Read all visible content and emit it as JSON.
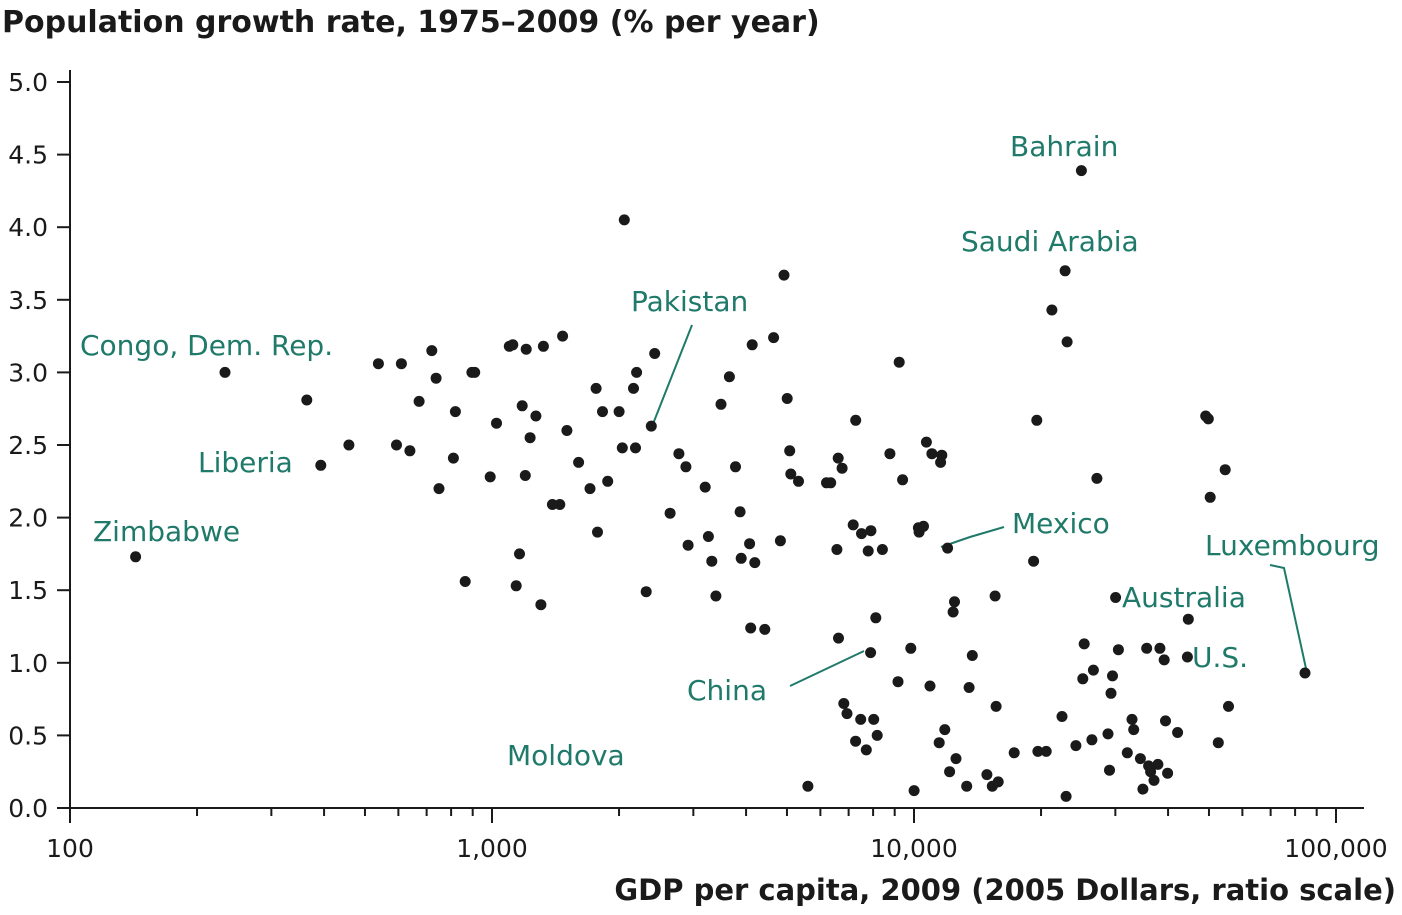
{
  "chart_data": {
    "type": "scatter",
    "title": "Population growth rate, 1975–2009 (% per year)",
    "xlabel": "GDP per capita, 2009 (2005 Dollars, ratio scale)",
    "ylabel": "",
    "x_scale": "log",
    "xlim": [
      100,
      100000
    ],
    "ylim": [
      0,
      5.0
    ],
    "x_ticks": [
      {
        "value": 100,
        "label": "100"
      },
      {
        "value": 1000,
        "label": "1,000"
      },
      {
        "value": 10000,
        "label": "10,000"
      },
      {
        "value": 100000,
        "label": "100,000"
      }
    ],
    "y_ticks": [
      {
        "value": 0,
        "label": "0.0"
      },
      {
        "value": 0.5,
        "label": "0.5"
      },
      {
        "value": 1.0,
        "label": "1.0"
      },
      {
        "value": 1.5,
        "label": "1.5"
      },
      {
        "value": 2.0,
        "label": "2.0"
      },
      {
        "value": 2.5,
        "label": "2.5"
      },
      {
        "value": 3.0,
        "label": "3.0"
      },
      {
        "value": 3.5,
        "label": "3.5"
      },
      {
        "value": 4.0,
        "label": "4.0"
      },
      {
        "value": 4.5,
        "label": "4.5"
      },
      {
        "value": 5.0,
        "label": "5.0"
      }
    ],
    "point_color": "#1a1a1a",
    "annotation_color": "#1f7a6a",
    "points": [
      [
        143,
        1.73
      ],
      [
        233,
        3.0
      ],
      [
        364,
        2.81
      ],
      [
        393,
        2.36
      ],
      [
        458,
        2.5
      ],
      [
        538,
        3.06
      ],
      [
        594,
        2.5
      ],
      [
        610,
        3.06
      ],
      [
        639,
        2.46
      ],
      [
        672,
        2.8
      ],
      [
        720,
        3.15
      ],
      [
        737,
        2.96
      ],
      [
        749,
        2.2
      ],
      [
        810,
        2.41
      ],
      [
        819,
        2.73
      ],
      [
        864,
        1.56
      ],
      [
        896,
        3.0
      ],
      [
        910,
        3.0
      ],
      [
        990,
        2.28
      ],
      [
        1025,
        2.65
      ],
      [
        1099,
        3.18
      ],
      [
        1120,
        3.19
      ],
      [
        1141,
        1.53
      ],
      [
        1162,
        1.75
      ],
      [
        1179,
        2.77
      ],
      [
        1199,
        2.29
      ],
      [
        1205,
        3.16
      ],
      [
        1231,
        2.55
      ],
      [
        1271,
        2.7
      ],
      [
        1306,
        1.4
      ],
      [
        1324,
        3.18
      ],
      [
        1390,
        2.09
      ],
      [
        1448,
        2.09
      ],
      [
        1470,
        3.25
      ],
      [
        1505,
        2.6
      ],
      [
        1604,
        2.38
      ],
      [
        1707,
        2.2
      ],
      [
        1765,
        2.89
      ],
      [
        1778,
        1.9
      ],
      [
        1827,
        2.73
      ],
      [
        1880,
        2.25
      ],
      [
        2001,
        2.73
      ],
      [
        2036,
        2.48
      ],
      [
        2058,
        4.05
      ],
      [
        2164,
        2.89
      ],
      [
        2188,
        2.48
      ],
      [
        2201,
        3.0
      ],
      [
        2320,
        1.49
      ],
      [
        2385,
        2.63
      ],
      [
        2430,
        3.13
      ],
      [
        2643,
        2.03
      ],
      [
        2772,
        2.44
      ],
      [
        2880,
        2.35
      ],
      [
        2915,
        1.81
      ],
      [
        3200,
        2.21
      ],
      [
        3256,
        1.87
      ],
      [
        3318,
        1.7
      ],
      [
        3393,
        1.46
      ],
      [
        3488,
        2.78
      ],
      [
        3652,
        2.97
      ],
      [
        3775,
        2.35
      ],
      [
        3871,
        2.04
      ],
      [
        3895,
        1.72
      ],
      [
        4078,
        1.82
      ],
      [
        4102,
        1.24
      ],
      [
        4137,
        3.19
      ],
      [
        4195,
        1.69
      ],
      [
        4431,
        1.23
      ],
      [
        4648,
        3.24
      ],
      [
        4824,
        1.84
      ],
      [
        4919,
        3.67
      ],
      [
        5006,
        2.82
      ],
      [
        5075,
        2.46
      ],
      [
        5106,
        2.3
      ],
      [
        5325,
        2.25
      ],
      [
        5604,
        0.15
      ],
      [
        6203,
        2.24
      ],
      [
        6347,
        2.24
      ],
      [
        6566,
        1.78
      ],
      [
        6612,
        2.41
      ],
      [
        6624,
        1.17
      ],
      [
        6754,
        2.34
      ],
      [
        6818,
        0.72
      ],
      [
        6937,
        0.65
      ],
      [
        7175,
        1.95
      ],
      [
        7270,
        0.46
      ],
      [
        7275,
        2.67
      ],
      [
        7478,
        0.61
      ],
      [
        7508,
        1.89
      ],
      [
        7710,
        0.4
      ],
      [
        7790,
        1.77
      ],
      [
        7893,
        1.07
      ],
      [
        7903,
        1.91
      ],
      [
        8027,
        0.61
      ],
      [
        8118,
        1.31
      ],
      [
        8181,
        0.5
      ],
      [
        8415,
        1.78
      ],
      [
        8766,
        2.44
      ],
      [
        9164,
        0.87
      ],
      [
        9224,
        3.07
      ],
      [
        9398,
        2.26
      ],
      [
        9827,
        1.1
      ],
      [
        10004,
        0.12
      ],
      [
        10242,
        1.93
      ],
      [
        10284,
        1.9
      ],
      [
        10532,
        1.94
      ],
      [
        10698,
        2.52
      ],
      [
        10915,
        0.84
      ],
      [
        11025,
        2.44
      ],
      [
        11473,
        0.45
      ],
      [
        11560,
        2.38
      ],
      [
        11640,
        2.43
      ],
      [
        11829,
        0.54
      ],
      [
        12012,
        1.79
      ],
      [
        12147,
        0.25
      ],
      [
        12377,
        1.35
      ],
      [
        12475,
        1.42
      ],
      [
        12578,
        0.34
      ],
      [
        13335,
        0.15
      ],
      [
        13506,
        0.83
      ],
      [
        13744,
        1.05
      ],
      [
        14884,
        0.23
      ],
      [
        15331,
        0.15
      ],
      [
        15565,
        1.46
      ],
      [
        15655,
        0.7
      ],
      [
        15830,
        0.18
      ],
      [
        17275,
        0.38
      ],
      [
        19201,
        1.7
      ],
      [
        19547,
        2.67
      ],
      [
        19656,
        0.39
      ],
      [
        20567,
        0.39
      ],
      [
        21218,
        3.43
      ],
      [
        22430,
        0.63
      ],
      [
        22802,
        3.7
      ],
      [
        22929,
        0.08
      ],
      [
        23054,
        3.21
      ],
      [
        24189,
        0.43
      ],
      [
        24930,
        4.39
      ],
      [
        25116,
        0.89
      ],
      [
        25315,
        1.13
      ],
      [
        26403,
        0.47
      ],
      [
        26614,
        0.95
      ],
      [
        27131,
        2.27
      ],
      [
        28829,
        0.51
      ],
      [
        29062,
        0.26
      ],
      [
        29298,
        0.79
      ],
      [
        29536,
        0.91
      ],
      [
        30048,
        1.45
      ],
      [
        30503,
        1.09
      ],
      [
        32025,
        0.38
      ],
      [
        32853,
        0.61
      ],
      [
        33160,
        0.54
      ],
      [
        34391,
        0.34
      ],
      [
        34872,
        0.13
      ],
      [
        35590,
        1.1
      ],
      [
        35969,
        0.29
      ],
      [
        36373,
        0.25
      ],
      [
        37046,
        0.19
      ],
      [
        37837,
        0.3
      ],
      [
        38256,
        1.1
      ],
      [
        39158,
        1.02
      ],
      [
        39441,
        0.6
      ],
      [
        39891,
        0.24
      ],
      [
        42125,
        0.52
      ],
      [
        44454,
        1.04
      ],
      [
        44680,
        1.3
      ],
      [
        49106,
        2.7
      ],
      [
        49811,
        2.68
      ],
      [
        50350,
        2.14
      ],
      [
        52600,
        0.45
      ],
      [
        54625,
        2.33
      ],
      [
        55609,
        0.7
      ],
      [
        84418,
        0.93
      ]
    ]
  },
  "annotations": [
    {
      "text": "Congo, Dem. Rep."
    },
    {
      "text": "Liberia"
    },
    {
      "text": "Zimbabwe"
    },
    {
      "text": "Pakistan"
    },
    {
      "text": "Bahrain"
    },
    {
      "text": "Saudi Arabia"
    },
    {
      "text": "Mexico"
    },
    {
      "text": "Luxembourg"
    },
    {
      "text": "Australia"
    },
    {
      "text": "U.S."
    },
    {
      "text": "China"
    },
    {
      "text": "Moldova"
    }
  ]
}
